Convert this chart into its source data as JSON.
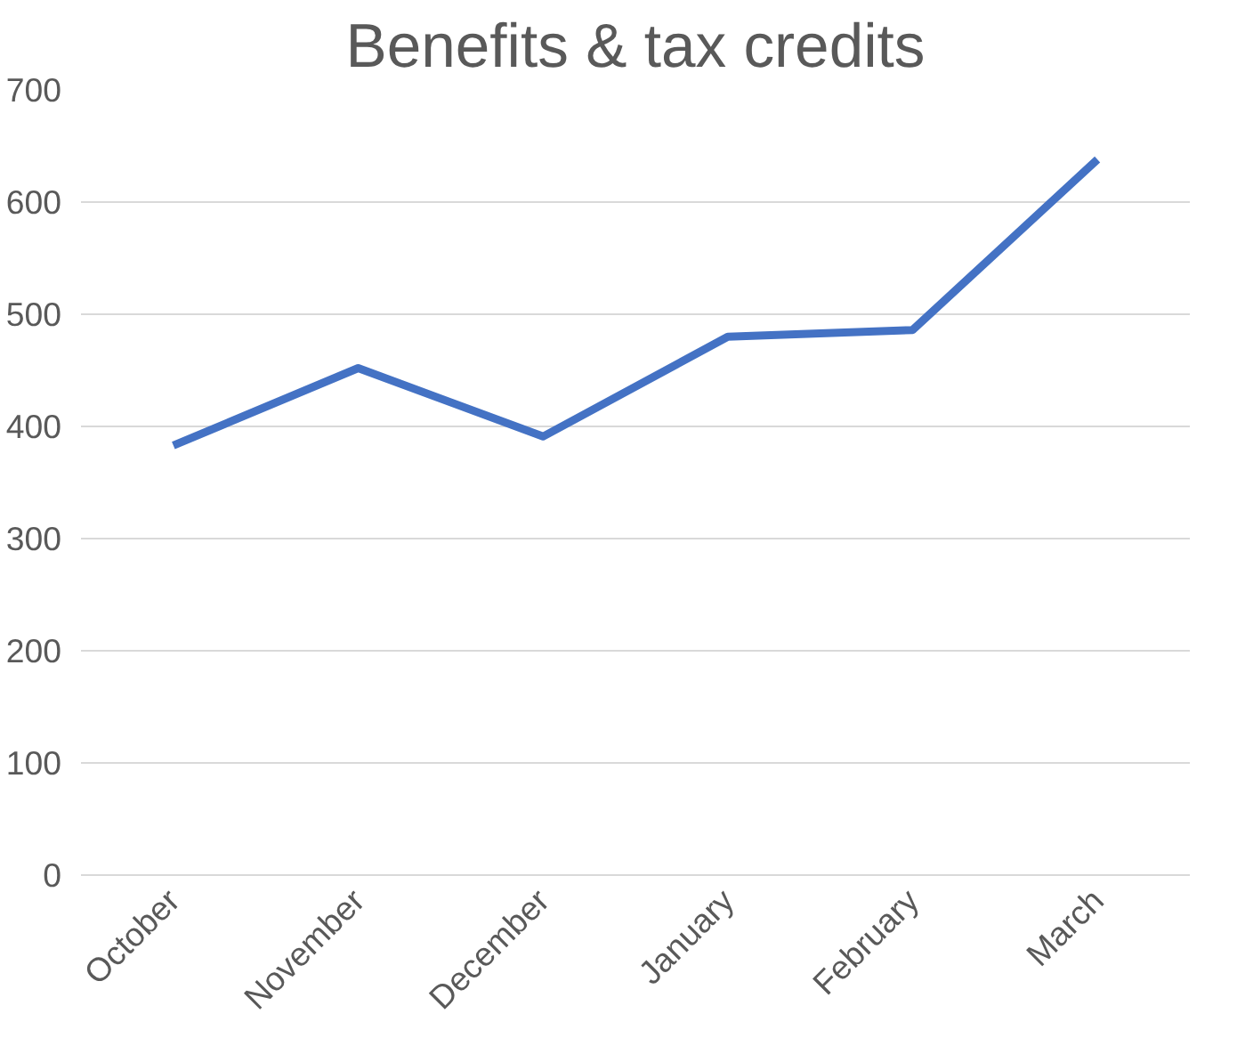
{
  "chart_data": {
    "type": "line",
    "title": "Benefits & tax credits",
    "categories": [
      "October",
      "November",
      "December",
      "January",
      "February",
      "March"
    ],
    "series": [
      {
        "color": "#4472c4",
        "values": [
          383,
          452,
          391,
          480,
          486,
          638
        ]
      }
    ],
    "ylim": [
      0,
      700
    ],
    "yticks": [
      0,
      100,
      200,
      300,
      400,
      500,
      600,
      700
    ],
    "grid": "y",
    "marker": "none",
    "line_style": "solid"
  }
}
